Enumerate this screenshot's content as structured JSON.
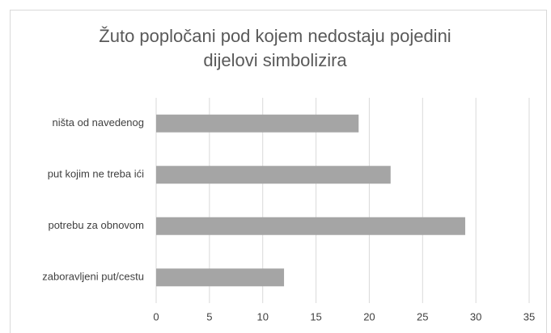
{
  "chart_data": {
    "type": "bar",
    "orientation": "horizontal",
    "title": "Žuto popločani pod kojem nedostaju pojedini dijelovi simbolizira",
    "categories": [
      "ništa od navedenog",
      "put kojim ne treba ići",
      "potrebu za obnovom",
      "zaboravljeni put/cestu"
    ],
    "values": [
      19,
      22,
      29,
      12
    ],
    "color": "#a5a5a5",
    "xlim": [
      0,
      35
    ],
    "xticks": [
      0,
      5,
      10,
      15,
      20,
      25,
      30,
      35
    ],
    "grid": true
  }
}
